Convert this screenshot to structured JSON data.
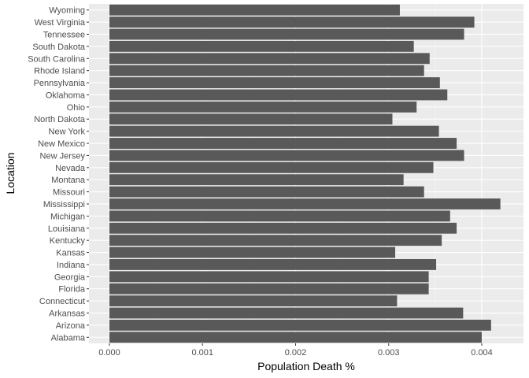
{
  "chart_data": {
    "type": "bar",
    "orientation": "horizontal",
    "xlabel": "Population Death %",
    "ylabel": "Location",
    "xlim": [
      0,
      0.00435
    ],
    "xticks": [
      "0.000",
      "0.001",
      "0.002",
      "0.003",
      "0.004"
    ],
    "xtick_values": [
      0,
      0.001,
      0.002,
      0.003,
      0.004
    ],
    "grid": true,
    "legend": "none",
    "colors": {
      "bar": "#595959",
      "panel": "#ebebeb",
      "grid_major": "#ffffff",
      "grid_minor": "#f5f5f5"
    },
    "categories": [
      "Alabama",
      "Arizona",
      "Arkansas",
      "Connecticut",
      "Florida",
      "Georgia",
      "Indiana",
      "Kansas",
      "Kentucky",
      "Louisiana",
      "Michigan",
      "Mississippi",
      "Missouri",
      "Montana",
      "Nevada",
      "New Jersey",
      "New Mexico",
      "New York",
      "North Dakota",
      "Ohio",
      "Oklahoma",
      "Pennsylvania",
      "Rhode Island",
      "South Carolina",
      "South Dakota",
      "Tennessee",
      "West Virginia",
      "Wyoming"
    ],
    "values": [
      0.004,
      0.0041,
      0.0038,
      0.00309,
      0.00343,
      0.00343,
      0.00351,
      0.00307,
      0.00357,
      0.00373,
      0.00366,
      0.0042,
      0.00338,
      0.00316,
      0.00348,
      0.00381,
      0.00373,
      0.00354,
      0.00304,
      0.0033,
      0.00363,
      0.00355,
      0.00338,
      0.00344,
      0.00327,
      0.00381,
      0.00392,
      0.00312
    ]
  }
}
